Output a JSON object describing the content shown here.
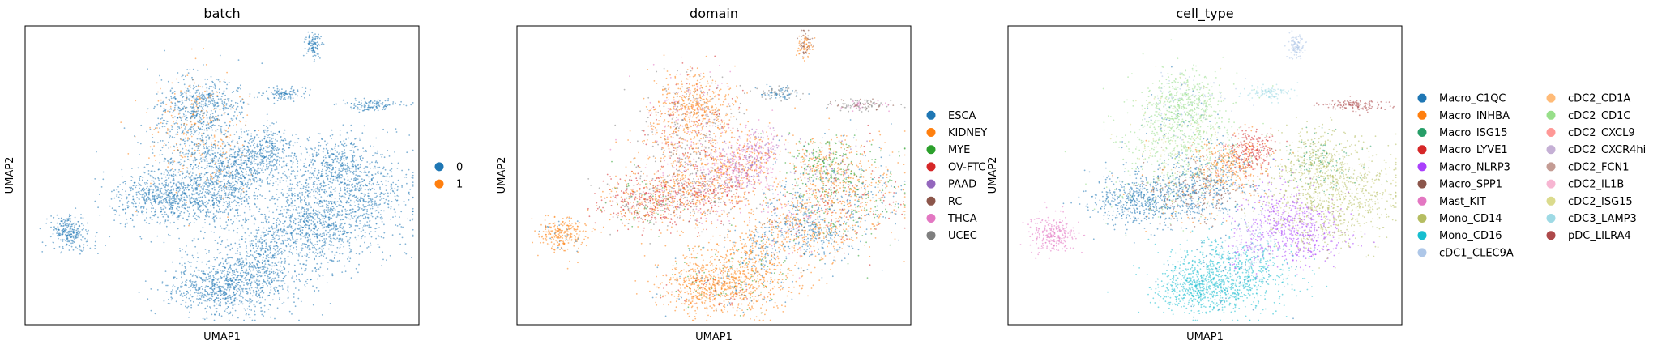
{
  "chart_data": [
    {
      "type": "scatter",
      "title": "batch",
      "xlabel": "UMAP1",
      "ylabel": "UMAP2",
      "grid": false,
      "legend_placement": "right",
      "legend": [
        {
          "label": "0",
          "color": "#1f77b4"
        },
        {
          "label": "1",
          "color": "#ff7f0e"
        }
      ]
    },
    {
      "type": "scatter",
      "title": "domain",
      "xlabel": "UMAP1",
      "ylabel": "UMAP2",
      "grid": false,
      "legend_placement": "right",
      "legend": [
        {
          "label": "ESCA",
          "color": "#1f77b4"
        },
        {
          "label": "KIDNEY",
          "color": "#ff7f0e"
        },
        {
          "label": "MYE",
          "color": "#2ca02c"
        },
        {
          "label": "OV-FTC",
          "color": "#d62728"
        },
        {
          "label": "PAAD",
          "color": "#9467bd"
        },
        {
          "label": "RC",
          "color": "#8c564b"
        },
        {
          "label": "THCA",
          "color": "#e377c2"
        },
        {
          "label": "UCEC",
          "color": "#7f7f7f"
        }
      ]
    },
    {
      "type": "scatter",
      "title": "cell_type",
      "xlabel": "UMAP1",
      "ylabel": "UMAP2",
      "grid": false,
      "legend_placement": "right",
      "legend": [
        {
          "label": "Macro_C1QC",
          "color": "#1f77b4"
        },
        {
          "label": "Macro_INHBA",
          "color": "#ff7f0e"
        },
        {
          "label": "Macro_ISG15",
          "color": "#279e68"
        },
        {
          "label": "Macro_LYVE1",
          "color": "#d62728"
        },
        {
          "label": "Macro_NLRP3",
          "color": "#aa40fc"
        },
        {
          "label": "Macro_SPP1",
          "color": "#8c564b"
        },
        {
          "label": "Mast_KIT",
          "color": "#e377c2"
        },
        {
          "label": "Mono_CD14",
          "color": "#b5bd61"
        },
        {
          "label": "Mono_CD16",
          "color": "#17becf"
        },
        {
          "label": "cDC1_CLEC9A",
          "color": "#aec7e8"
        },
        {
          "label": "cDC2_CD1A",
          "color": "#ffbb78"
        },
        {
          "label": "cDC2_CD1C",
          "color": "#98df8a"
        },
        {
          "label": "cDC2_CXCL9",
          "color": "#ff9896"
        },
        {
          "label": "cDC2_CXCR4hi",
          "color": "#c5b0d5"
        },
        {
          "label": "cDC2_FCN1",
          "color": "#c49c94"
        },
        {
          "label": "cDC2_IL1B",
          "color": "#f7b6d2"
        },
        {
          "label": "cDC2_ISG15",
          "color": "#dbdb8d"
        },
        {
          "label": "cDC3_LAMP3",
          "color": "#9edae5"
        },
        {
          "label": "pDC_LILRA4",
          "color": "#ad494a"
        }
      ]
    }
  ]
}
